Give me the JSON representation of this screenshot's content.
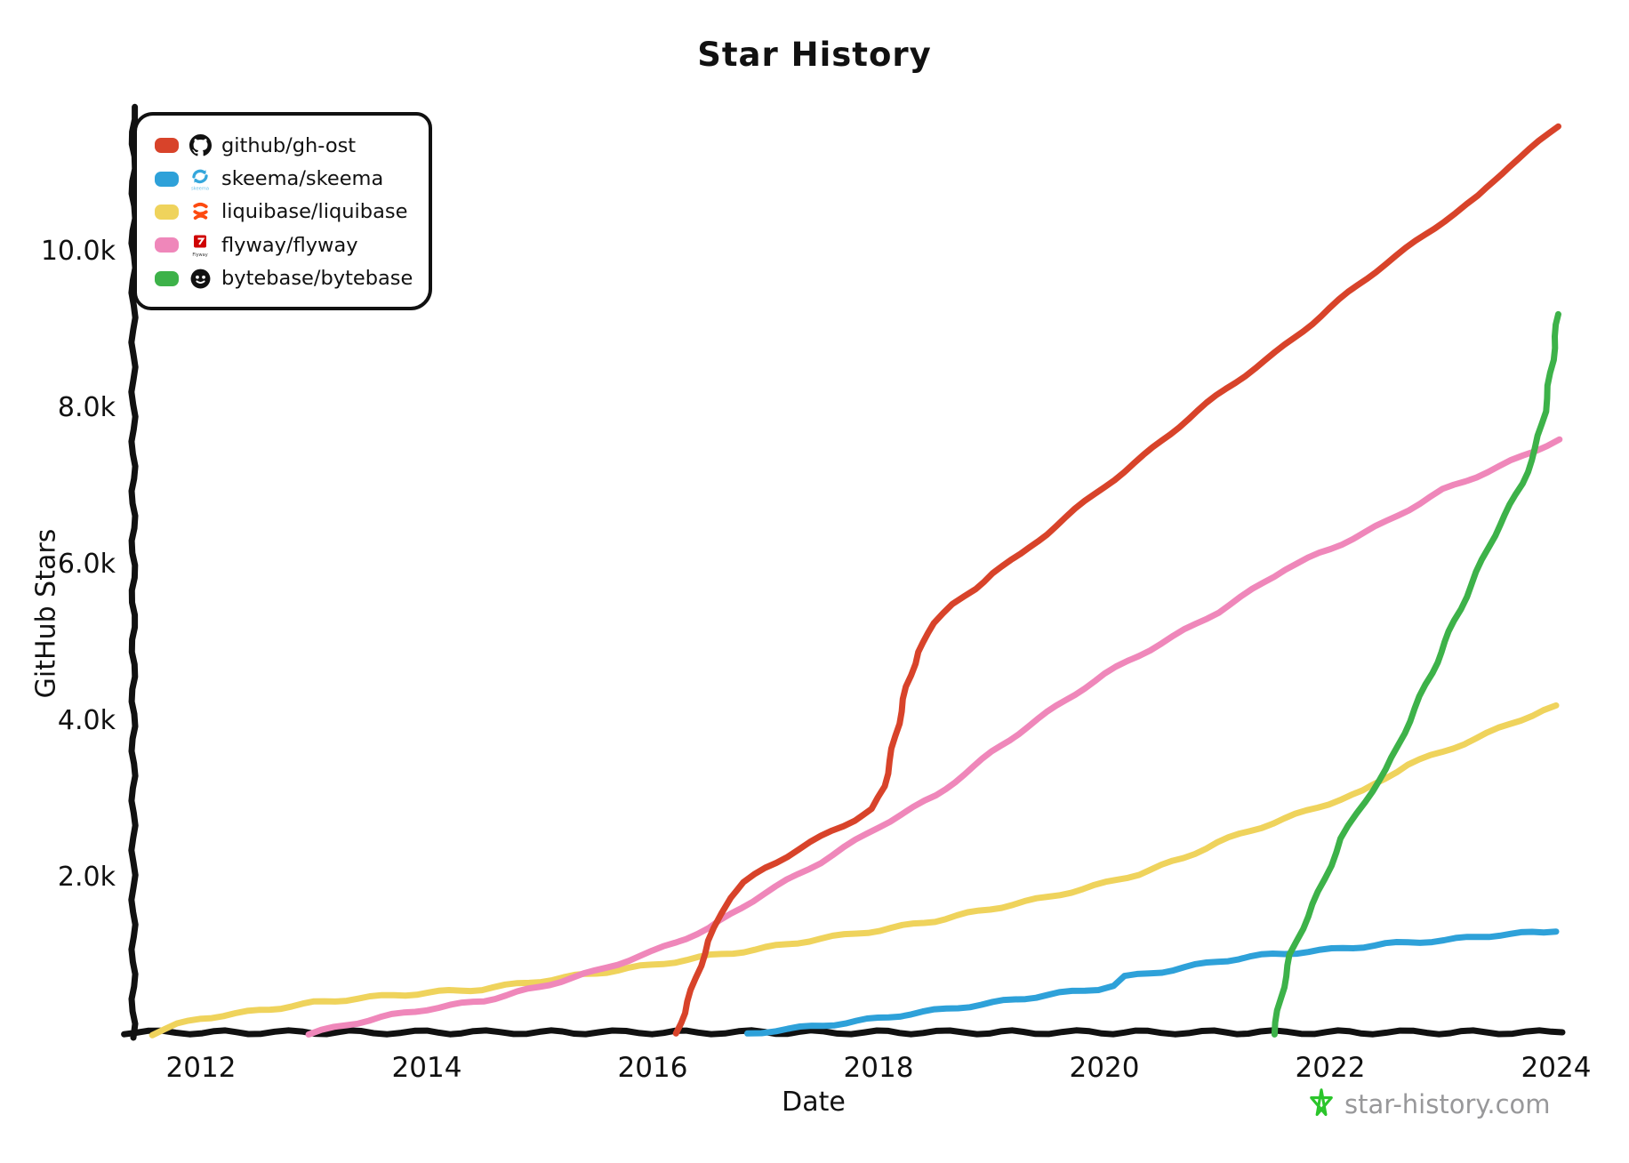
{
  "title": "Star History",
  "axes": {
    "x_label": "Date",
    "y_label": "GitHub Stars",
    "x_ticks": [
      {
        "label": "2012",
        "year": 2012
      },
      {
        "label": "2014",
        "year": 2014
      },
      {
        "label": "2016",
        "year": 2016
      },
      {
        "label": "2018",
        "year": 2018
      },
      {
        "label": "2020",
        "year": 2020
      },
      {
        "label": "2022",
        "year": 2022
      },
      {
        "label": "2024",
        "year": 2024
      }
    ],
    "y_ticks": [
      {
        "label": "2.0k",
        "value": 2000
      },
      {
        "label": "4.0k",
        "value": 4000
      },
      {
        "label": "6.0k",
        "value": 6000
      },
      {
        "label": "8.0k",
        "value": 8000
      },
      {
        "label": "10.0k",
        "value": 10000
      }
    ]
  },
  "legend": {
    "items": [
      {
        "label": "github/gh-ost",
        "icon": "github-icon",
        "color": "#d8432a"
      },
      {
        "label": "skeema/skeema",
        "icon": "skeema-icon",
        "color": "#2ea1d9"
      },
      {
        "label": "liquibase/liquibase",
        "icon": "liquibase-icon",
        "color": "#efd35c"
      },
      {
        "label": "flyway/flyway",
        "icon": "flyway-icon",
        "color": "#ef87ba"
      },
      {
        "label": "bytebase/bytebase",
        "icon": "bytebase-icon",
        "color": "#3db249"
      }
    ]
  },
  "watermark": {
    "text": "star-history.com",
    "star_color": "#2bc52b",
    "text_color": "#98989a"
  },
  "colors": {
    "axis": "#111111",
    "background": "#ffffff"
  },
  "chart_data": {
    "type": "line",
    "title": "Star History",
    "xlabel": "Date",
    "ylabel": "GitHub Stars",
    "x_range": [
      2011.4,
      2024.1
    ],
    "ylim": [
      0,
      12000
    ],
    "grid": false,
    "legend_position": "top-left",
    "units": "GitHub stars",
    "series": [
      {
        "name": "github/gh-ost",
        "color": "#d8432a",
        "z": 3,
        "points": [
          [
            2016.2,
            0
          ],
          [
            2016.28,
            250
          ],
          [
            2016.38,
            700
          ],
          [
            2016.5,
            1200
          ],
          [
            2016.6,
            1550
          ],
          [
            2016.68,
            1750
          ],
          [
            2016.8,
            1930
          ],
          [
            2017.0,
            2120
          ],
          [
            2017.3,
            2360
          ],
          [
            2017.6,
            2600
          ],
          [
            2017.8,
            2740
          ],
          [
            2017.95,
            2870
          ],
          [
            2018.05,
            3150
          ],
          [
            2018.15,
            3800
          ],
          [
            2018.25,
            4450
          ],
          [
            2018.35,
            4900
          ],
          [
            2018.5,
            5250
          ],
          [
            2018.65,
            5480
          ],
          [
            2018.85,
            5700
          ],
          [
            2019.0,
            5900
          ],
          [
            2019.25,
            6120
          ],
          [
            2019.5,
            6400
          ],
          [
            2020.0,
            7000
          ],
          [
            2020.5,
            7580
          ],
          [
            2021.0,
            8150
          ],
          [
            2021.5,
            8700
          ],
          [
            2022.0,
            9280
          ],
          [
            2022.5,
            9850
          ],
          [
            2023.0,
            10400
          ],
          [
            2023.3,
            10700
          ],
          [
            2023.6,
            11100
          ],
          [
            2024.02,
            11600
          ]
        ]
      },
      {
        "name": "skeema/skeema",
        "color": "#2ea1d9",
        "z": 2,
        "points": [
          [
            2016.85,
            0
          ],
          [
            2017.1,
            50
          ],
          [
            2017.5,
            110
          ],
          [
            2018.0,
            200
          ],
          [
            2018.5,
            300
          ],
          [
            2019.0,
            400
          ],
          [
            2019.5,
            500
          ],
          [
            2019.95,
            580
          ],
          [
            2020.08,
            620
          ],
          [
            2020.18,
            730
          ],
          [
            2020.5,
            800
          ],
          [
            2021.0,
            930
          ],
          [
            2021.5,
            1020
          ],
          [
            2022.0,
            1080
          ],
          [
            2022.5,
            1150
          ],
          [
            2023.0,
            1200
          ],
          [
            2023.5,
            1270
          ],
          [
            2024.0,
            1310
          ]
        ]
      },
      {
        "name": "liquibase/liquibase",
        "color": "#efd35c",
        "z": 0,
        "points": [
          [
            2011.58,
            0
          ],
          [
            2011.8,
            120
          ],
          [
            2012.0,
            200
          ],
          [
            2012.5,
            300
          ],
          [
            2013.0,
            400
          ],
          [
            2013.5,
            470
          ],
          [
            2014.0,
            530
          ],
          [
            2014.5,
            575
          ],
          [
            2015.0,
            680
          ],
          [
            2015.5,
            780
          ],
          [
            2016.0,
            880
          ],
          [
            2016.5,
            1000
          ],
          [
            2017.0,
            1100
          ],
          [
            2017.5,
            1220
          ],
          [
            2018.0,
            1330
          ],
          [
            2018.5,
            1450
          ],
          [
            2019.0,
            1600
          ],
          [
            2019.5,
            1750
          ],
          [
            2020.0,
            1930
          ],
          [
            2020.3,
            2050
          ],
          [
            2020.7,
            2250
          ],
          [
            2021.0,
            2450
          ],
          [
            2021.5,
            2700
          ],
          [
            2022.0,
            2950
          ],
          [
            2022.3,
            3100
          ],
          [
            2022.7,
            3450
          ],
          [
            2023.0,
            3600
          ],
          [
            2023.5,
            3900
          ],
          [
            2024.0,
            4200
          ]
        ]
      },
      {
        "name": "flyway/flyway",
        "color": "#ef87ba",
        "z": 1,
        "points": [
          [
            2012.95,
            0
          ],
          [
            2013.3,
            120
          ],
          [
            2013.7,
            240
          ],
          [
            2014.0,
            320
          ],
          [
            2014.5,
            430
          ],
          [
            2015.0,
            600
          ],
          [
            2015.5,
            800
          ],
          [
            2016.0,
            1050
          ],
          [
            2016.5,
            1350
          ],
          [
            2017.0,
            1800
          ],
          [
            2017.5,
            2200
          ],
          [
            2018.0,
            2650
          ],
          [
            2018.5,
            3050
          ],
          [
            2019.0,
            3600
          ],
          [
            2019.5,
            4100
          ],
          [
            2020.0,
            4600
          ],
          [
            2020.5,
            5000
          ],
          [
            2021.0,
            5400
          ],
          [
            2021.6,
            5950
          ],
          [
            2022.0,
            6200
          ],
          [
            2022.5,
            6550
          ],
          [
            2023.0,
            6950
          ],
          [
            2023.5,
            7250
          ],
          [
            2024.03,
            7600
          ]
        ]
      },
      {
        "name": "bytebase/bytebase",
        "color": "#3db249",
        "z": 4,
        "points": [
          [
            2021.5,
            0
          ],
          [
            2021.56,
            450
          ],
          [
            2021.65,
            1000
          ],
          [
            2021.8,
            1500
          ],
          [
            2021.95,
            2000
          ],
          [
            2022.1,
            2500
          ],
          [
            2022.3,
            2950
          ],
          [
            2022.5,
            3400
          ],
          [
            2022.7,
            4000
          ],
          [
            2022.9,
            4600
          ],
          [
            2023.1,
            5300
          ],
          [
            2023.3,
            5900
          ],
          [
            2023.5,
            6500
          ],
          [
            2023.7,
            7050
          ],
          [
            2023.82,
            7500
          ],
          [
            2023.9,
            7950
          ],
          [
            2023.97,
            8600
          ],
          [
            2024.02,
            9200
          ]
        ]
      }
    ]
  }
}
